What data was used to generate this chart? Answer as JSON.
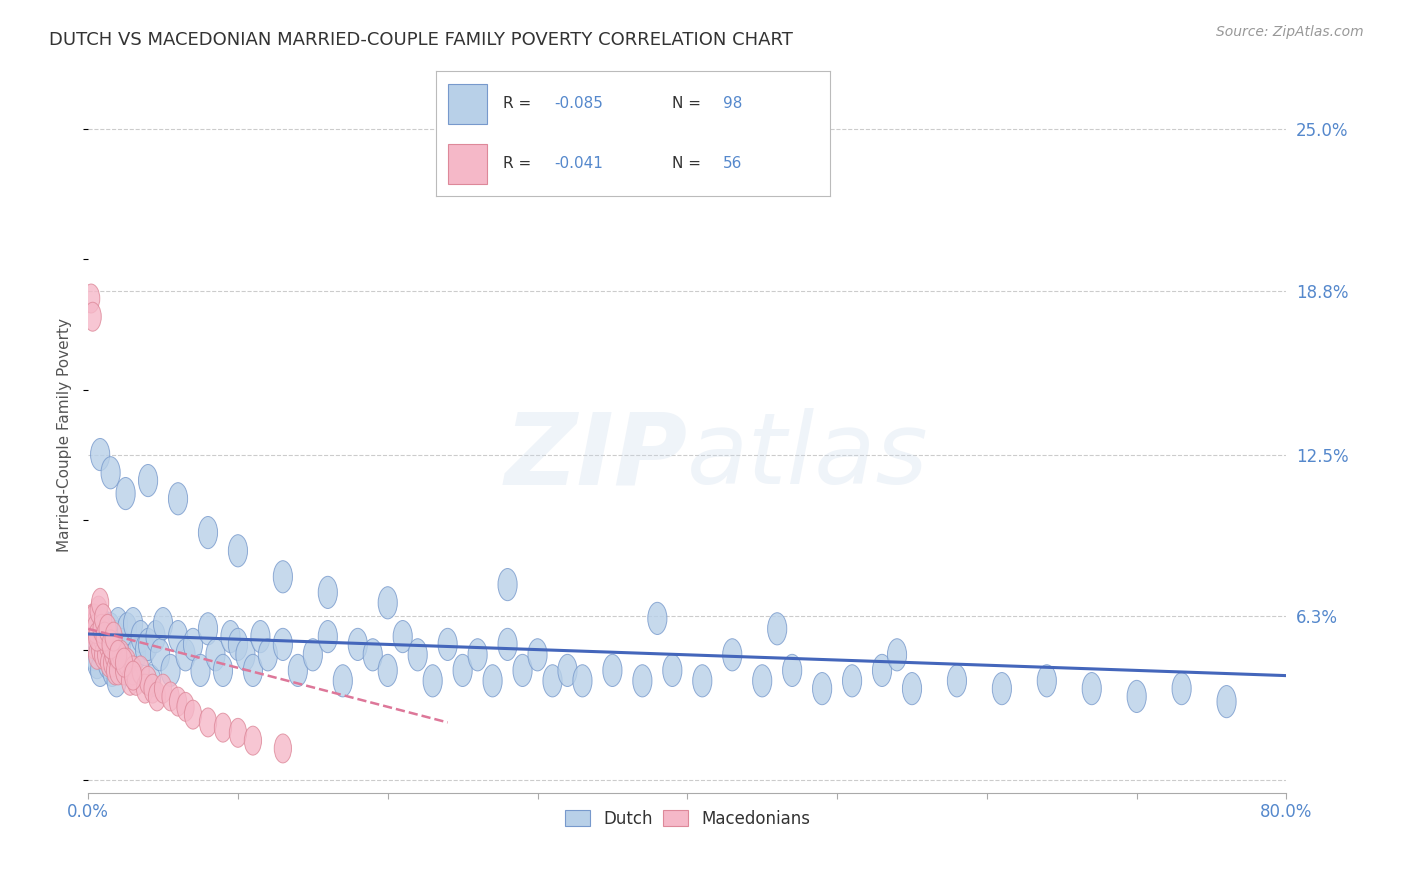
{
  "title": "DUTCH VS MACEDONIAN MARRIED-COUPLE FAMILY POVERTY CORRELATION CHART",
  "source": "Source: ZipAtlas.com",
  "ylabel": "Married-Couple Family Poverty",
  "xlim": [
    0.0,
    0.8
  ],
  "ylim": [
    -0.005,
    0.27
  ],
  "xticks": [
    0.0,
    0.1,
    0.2,
    0.3,
    0.4,
    0.5,
    0.6,
    0.7,
    0.8
  ],
  "xticklabels": [
    "0.0%",
    "",
    "",
    "",
    "",
    "",
    "",
    "",
    "80.0%"
  ],
  "ytick_positions": [
    0.0,
    0.063,
    0.125,
    0.188,
    0.25
  ],
  "ytick_labels": [
    "",
    "6.3%",
    "12.5%",
    "18.8%",
    "25.0%"
  ],
  "dutch_color": "#b8d0e8",
  "macedonian_color": "#f5b8c8",
  "dutch_edge_color": "#7799cc",
  "macedonian_edge_color": "#dd8899",
  "trend_dutch_color": "#4466bb",
  "trend_macedonian_color": "#dd7799",
  "background_color": "#ffffff",
  "grid_color": "#cccccc",
  "title_color": "#333333",
  "axis_label_color": "#555555",
  "tick_label_color": "#5588cc",
  "dutch_R": -0.085,
  "dutch_N": 98,
  "macedonian_R": -0.041,
  "macedonian_N": 56,
  "dutch_x": [
    0.002,
    0.004,
    0.005,
    0.006,
    0.007,
    0.008,
    0.009,
    0.01,
    0.011,
    0.012,
    0.013,
    0.014,
    0.015,
    0.016,
    0.017,
    0.018,
    0.019,
    0.02,
    0.022,
    0.024,
    0.026,
    0.028,
    0.03,
    0.032,
    0.035,
    0.038,
    0.04,
    0.042,
    0.045,
    0.048,
    0.05,
    0.055,
    0.06,
    0.065,
    0.07,
    0.075,
    0.08,
    0.085,
    0.09,
    0.095,
    0.1,
    0.105,
    0.11,
    0.115,
    0.12,
    0.13,
    0.14,
    0.15,
    0.16,
    0.17,
    0.18,
    0.19,
    0.2,
    0.21,
    0.22,
    0.23,
    0.24,
    0.25,
    0.26,
    0.27,
    0.28,
    0.29,
    0.3,
    0.31,
    0.32,
    0.33,
    0.35,
    0.37,
    0.39,
    0.41,
    0.43,
    0.45,
    0.47,
    0.49,
    0.51,
    0.53,
    0.55,
    0.58,
    0.61,
    0.64,
    0.67,
    0.7,
    0.73,
    0.76,
    0.008,
    0.015,
    0.025,
    0.04,
    0.06,
    0.08,
    0.1,
    0.13,
    0.16,
    0.2,
    0.28,
    0.38,
    0.46,
    0.54
  ],
  "dutch_y": [
    0.052,
    0.048,
    0.055,
    0.045,
    0.058,
    0.042,
    0.06,
    0.05,
    0.048,
    0.055,
    0.045,
    0.052,
    0.058,
    0.042,
    0.048,
    0.055,
    0.038,
    0.06,
    0.052,
    0.045,
    0.058,
    0.042,
    0.06,
    0.048,
    0.055,
    0.05,
    0.052,
    0.038,
    0.055,
    0.048,
    0.06,
    0.042,
    0.055,
    0.048,
    0.052,
    0.042,
    0.058,
    0.048,
    0.042,
    0.055,
    0.052,
    0.048,
    0.042,
    0.055,
    0.048,
    0.052,
    0.042,
    0.048,
    0.055,
    0.038,
    0.052,
    0.048,
    0.042,
    0.055,
    0.048,
    0.038,
    0.052,
    0.042,
    0.048,
    0.038,
    0.052,
    0.042,
    0.048,
    0.038,
    0.042,
    0.038,
    0.042,
    0.038,
    0.042,
    0.038,
    0.048,
    0.038,
    0.042,
    0.035,
    0.038,
    0.042,
    0.035,
    0.038,
    0.035,
    0.038,
    0.035,
    0.032,
    0.035,
    0.03,
    0.125,
    0.118,
    0.11,
    0.115,
    0.108,
    0.095,
    0.088,
    0.078,
    0.072,
    0.068,
    0.075,
    0.062,
    0.058,
    0.048
  ],
  "macedonian_x": [
    0.002,
    0.003,
    0.004,
    0.005,
    0.006,
    0.007,
    0.008,
    0.009,
    0.01,
    0.011,
    0.012,
    0.013,
    0.014,
    0.015,
    0.016,
    0.017,
    0.018,
    0.019,
    0.02,
    0.022,
    0.024,
    0.026,
    0.028,
    0.03,
    0.032,
    0.035,
    0.038,
    0.04,
    0.043,
    0.046,
    0.05,
    0.055,
    0.06,
    0.065,
    0.07,
    0.08,
    0.09,
    0.1,
    0.11,
    0.13,
    0.002,
    0.003,
    0.004,
    0.005,
    0.006,
    0.007,
    0.008,
    0.009,
    0.01,
    0.011,
    0.013,
    0.015,
    0.017,
    0.02,
    0.024,
    0.03
  ],
  "macedonian_y": [
    0.058,
    0.062,
    0.052,
    0.06,
    0.048,
    0.055,
    0.05,
    0.055,
    0.048,
    0.055,
    0.048,
    0.052,
    0.045,
    0.052,
    0.045,
    0.048,
    0.042,
    0.048,
    0.042,
    0.048,
    0.042,
    0.045,
    0.038,
    0.042,
    0.038,
    0.042,
    0.035,
    0.038,
    0.035,
    0.032,
    0.035,
    0.032,
    0.03,
    0.028,
    0.025,
    0.022,
    0.02,
    0.018,
    0.015,
    0.012,
    0.185,
    0.178,
    0.062,
    0.058,
    0.055,
    0.065,
    0.068,
    0.058,
    0.062,
    0.055,
    0.058,
    0.052,
    0.055,
    0.048,
    0.045,
    0.04
  ],
  "dutch_trend_x": [
    0.0,
    0.8
  ],
  "dutch_trend_y": [
    0.056,
    0.04
  ],
  "macedonian_trend_x": [
    0.0,
    0.24
  ],
  "macedonian_trend_y": [
    0.058,
    0.022
  ]
}
